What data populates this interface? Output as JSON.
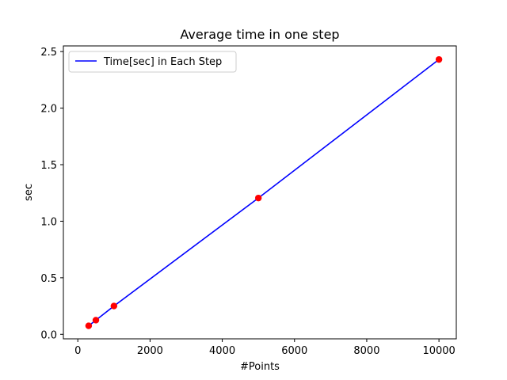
{
  "chart_data": {
    "type": "line",
    "title": "Average time in one step",
    "xlabel": "#Points",
    "ylabel": "sec",
    "x": [
      300,
      500,
      1000,
      5000,
      10000
    ],
    "series": [
      {
        "name": "Time[sec] in Each Step",
        "values": [
          0.075,
          0.125,
          0.25,
          1.205,
          2.43
        ],
        "line_color": "#0000ff",
        "marker_color": "#ff0000"
      }
    ],
    "xlim": [
      -400,
      10480
    ],
    "ylim": [
      -0.04,
      2.55
    ],
    "xticks": [
      0,
      2000,
      4000,
      6000,
      8000,
      10000
    ],
    "xtick_labels": [
      "0",
      "2000",
      "4000",
      "6000",
      "8000",
      "10000"
    ],
    "yticks": [
      0.0,
      0.5,
      1.0,
      1.5,
      2.0,
      2.5
    ],
    "ytick_labels": [
      "0.0",
      "0.5",
      "1.0",
      "1.5",
      "2.0",
      "2.5"
    ],
    "grid": false,
    "legend": "top-left"
  }
}
